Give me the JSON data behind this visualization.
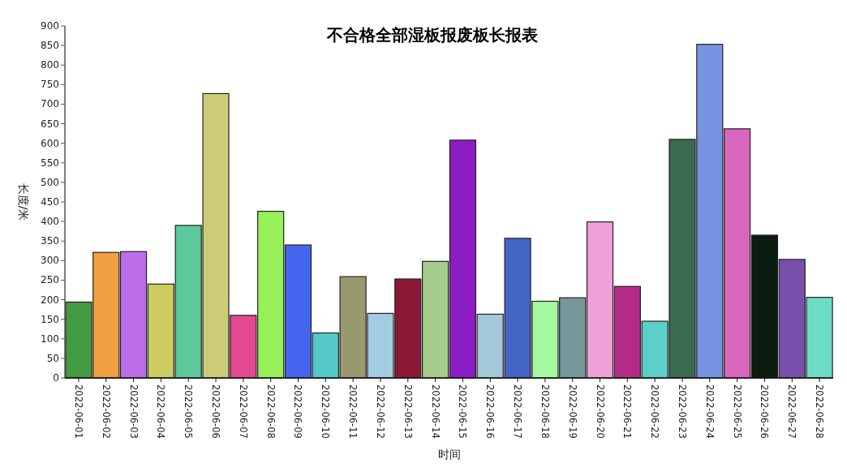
{
  "chart_data": {
    "type": "bar",
    "title": "不合格全部湿板报废板长报表",
    "xlabel": "时间",
    "ylabel": "长度/米",
    "categories": [
      "2022-06-01",
      "2022-06-02",
      "2022-06-03",
      "2022-06-04",
      "2022-06-05",
      "2022-06-06",
      "2022-06-07",
      "2022-06-08",
      "2022-06-09",
      "2022-06-10",
      "2022-06-11",
      "2022-06-12",
      "2022-06-13",
      "2022-06-14",
      "2022-06-15",
      "2022-06-16",
      "2022-06-17",
      "2022-06-18",
      "2022-06-19",
      "2022-06-20",
      "2022-06-21",
      "2022-06-22",
      "2022-06-23",
      "2022-06-24",
      "2022-06-25",
      "2022-06-26",
      "2022-06-27",
      "2022-06-28"
    ],
    "values": [
      194,
      321,
      323,
      240,
      390,
      727,
      160,
      426,
      340,
      115,
      259,
      165,
      253,
      298,
      608,
      163,
      357,
      196,
      205,
      399,
      234,
      145,
      610,
      853,
      637,
      365,
      303,
      206
    ],
    "colors": [
      "#449944",
      "#f0a040",
      "#bb6ee8",
      "#cccc60",
      "#5cc99c",
      "#cccc77",
      "#e44890",
      "#96f05a",
      "#4466ee",
      "#55c8c8",
      "#999970",
      "#a4cce0",
      "#8c1838",
      "#a6cc8c",
      "#8c1cc4",
      "#a4c8d8",
      "#4464c4",
      "#a6f8a0",
      "#76989a",
      "#f0a0d8",
      "#b42c88",
      "#5cd0c8",
      "#3a6a50",
      "#7794e2",
      "#d866bc",
      "#0c1c10",
      "#7850ac",
      "#6edcc4"
    ],
    "ylim": [
      0,
      900
    ],
    "yticks": [
      0,
      50,
      100,
      150,
      200,
      250,
      300,
      350,
      400,
      450,
      500,
      550,
      600,
      650,
      700,
      750,
      800,
      850,
      900
    ]
  }
}
